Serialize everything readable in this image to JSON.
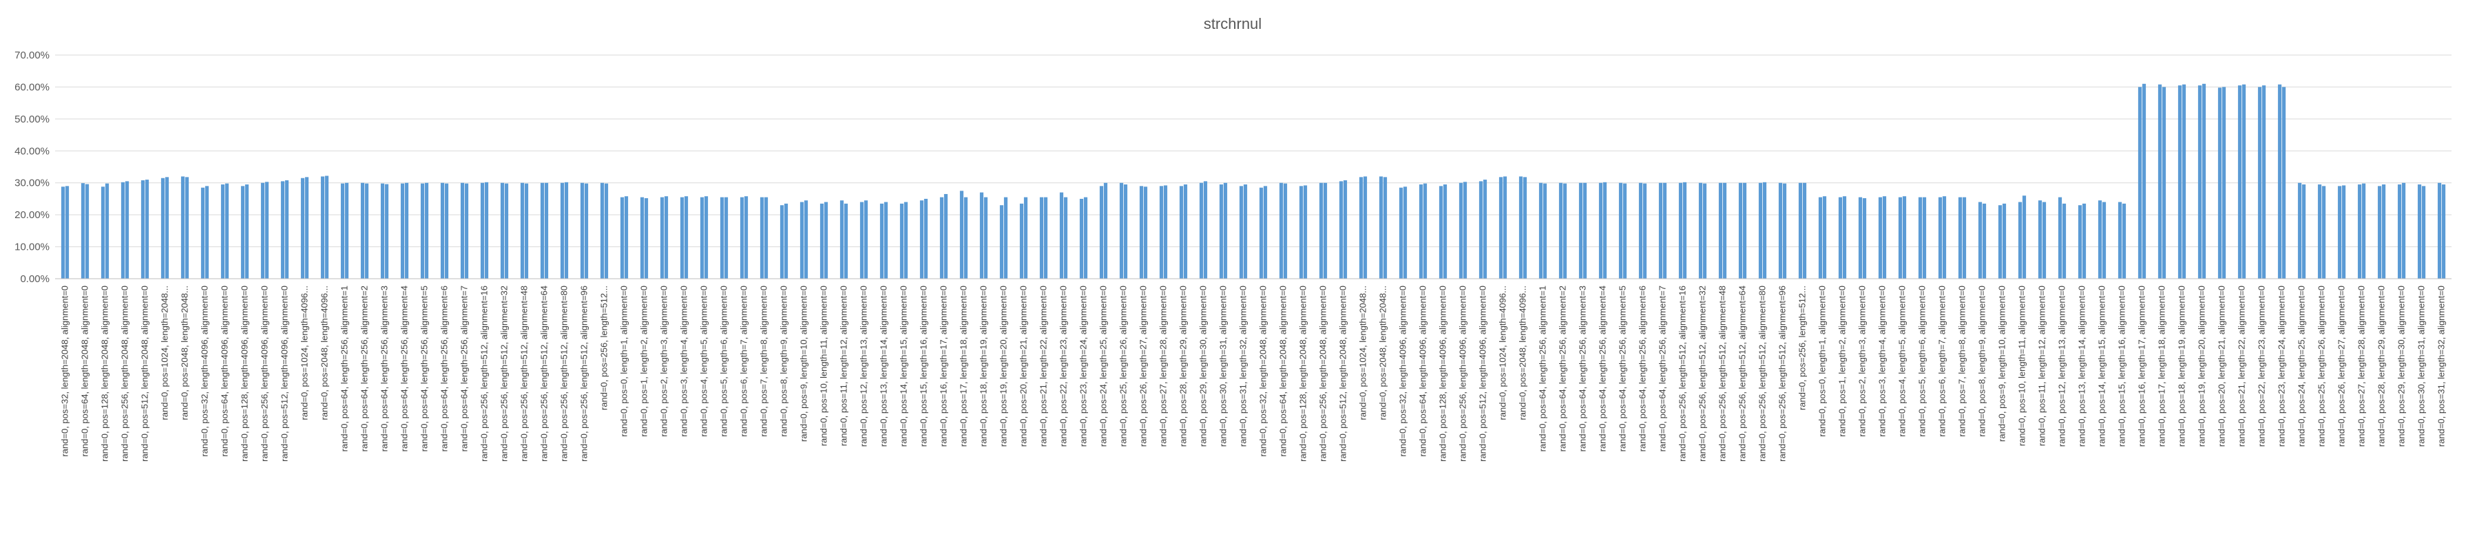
{
  "chart_data": {
    "type": "bar",
    "title": "strchrnul",
    "xlabel": "",
    "ylabel": "",
    "ylim": [
      0,
      0.7
    ],
    "yticks": [
      0,
      0.1,
      0.2,
      0.3,
      0.4,
      0.5,
      0.6,
      0.7
    ],
    "ytick_labels": [
      "0.00%",
      "10.00%",
      "20.00%",
      "30.00%",
      "40.00%",
      "50.00%",
      "60.00%",
      "70.00%"
    ],
    "grid": true,
    "legend": "none",
    "bar_color": "#5b9bd5",
    "categories": [
      "rand=0, pos=32, length=2048, alignment=0",
      "rand=0, pos=64, length=2048, alignment=0",
      "rand=0, pos=128, length=2048, alignment=0",
      "rand=0, pos=256, length=2048, alignment=0",
      "rand=0, pos=512, length=2048, alignment=0",
      "rand=0, pos=1024, length=2048...",
      "rand=0, pos=2048, length=2048...",
      "rand=0, pos=32, length=4096, alignment=0",
      "rand=0, pos=64, length=4096, alignment=0",
      "rand=0, pos=128, length=4096, alignment=0",
      "rand=0, pos=256, length=4096, alignment=0",
      "rand=0, pos=512, length=4096, alignment=0",
      "rand=0, pos=1024, length=4096...",
      "rand=0, pos=2048, length=4096...",
      "rand=0, pos=64, length=256, alignment=1",
      "rand=0, pos=64, length=256, alignment=2",
      "rand=0, pos=64, length=256, alignment=3",
      "rand=0, pos=64, length=256, alignment=4",
      "rand=0, pos=64, length=256, alignment=5",
      "rand=0, pos=64, length=256, alignment=6",
      "rand=0, pos=64, length=256, alignment=7",
      "rand=0, pos=256, length=512, alignment=16",
      "rand=0, pos=256, length=512, alignment=32",
      "rand=0, pos=256, length=512, alignment=48",
      "rand=0, pos=256, length=512, alignment=64",
      "rand=0, pos=256, length=512, alignment=80",
      "rand=0, pos=256, length=512, alignment=96",
      "rand=0, pos=256, length=512...",
      "rand=0, pos=0, length=1, alignment=0",
      "rand=0, pos=1, length=2, alignment=0",
      "rand=0, pos=2, length=3, alignment=0",
      "rand=0, pos=3, length=4, alignment=0",
      "rand=0, pos=4, length=5, alignment=0",
      "rand=0, pos=5, length=6, alignment=0",
      "rand=0, pos=6, length=7, alignment=0",
      "rand=0, pos=7, length=8, alignment=0",
      "rand=0, pos=8, length=9, alignment=0",
      "rand=0, pos=9, length=10, alignment=0",
      "rand=0, pos=10, length=11, alignment=0",
      "rand=0, pos=11, length=12, alignment=0",
      "rand=0, pos=12, length=13, alignment=0",
      "rand=0, pos=13, length=14, alignment=0",
      "rand=0, pos=14, length=15, alignment=0",
      "rand=0, pos=15, length=16, alignment=0",
      "rand=0, pos=16, length=17, alignment=0",
      "rand=0, pos=17, length=18, alignment=0",
      "rand=0, pos=18, length=19, alignment=0",
      "rand=0, pos=19, length=20, alignment=0",
      "rand=0, pos=20, length=21, alignment=0",
      "rand=0, pos=21, length=22, alignment=0",
      "rand=0, pos=22, length=23, alignment=0",
      "rand=0, pos=23, length=24, alignment=0",
      "rand=0, pos=24, length=25, alignment=0",
      "rand=0, pos=25, length=26, alignment=0",
      "rand=0, pos=26, length=27, alignment=0",
      "rand=0, pos=27, length=28, alignment=0",
      "rand=0, pos=28, length=29, alignment=0",
      "rand=0, pos=29, length=30, alignment=0",
      "rand=0, pos=30, length=31, alignment=0",
      "rand=0, pos=31, length=32, alignment=0",
      "rand=0, pos=32, length=2048, alignment=0",
      "rand=0, pos=64, length=2048, alignment=0",
      "rand=0, pos=128, length=2048, alignment=0",
      "rand=0, pos=256, length=2048, alignment=0",
      "rand=0, pos=512, length=2048, alignment=0",
      "rand=0, pos=1024, length=2048...",
      "rand=0, pos=2048, length=2048...",
      "rand=0, pos=32, length=4096, alignment=0",
      "rand=0, pos=64, length=4096, alignment=0",
      "rand=0, pos=128, length=4096, alignment=0",
      "rand=0, pos=256, length=4096, alignment=0",
      "rand=0, pos=512, length=4096, alignment=0",
      "rand=0, pos=1024, length=4096...",
      "rand=0, pos=2048, length=4096...",
      "rand=0, pos=64, length=256, alignment=1",
      "rand=0, pos=64, length=256, alignment=2",
      "rand=0, pos=64, length=256, alignment=3",
      "rand=0, pos=64, length=256, alignment=4",
      "rand=0, pos=64, length=256, alignment=5",
      "rand=0, pos=64, length=256, alignment=6",
      "rand=0, pos=64, length=256, alignment=7",
      "rand=0, pos=256, length=512, alignment=16",
      "rand=0, pos=256, length=512, alignment=32",
      "rand=0, pos=256, length=512, alignment=48",
      "rand=0, pos=256, length=512, alignment=64",
      "rand=0, pos=256, length=512, alignment=80",
      "rand=0, pos=256, length=512, alignment=96",
      "rand=0, pos=256, length=512...",
      "rand=0, pos=0, length=1, alignment=0",
      "rand=0, pos=1, length=2, alignment=0",
      "rand=0, pos=2, length=3, alignment=0",
      "rand=0, pos=3, length=4, alignment=0",
      "rand=0, pos=4, length=5, alignment=0",
      "rand=0, pos=5, length=6, alignment=0",
      "rand=0, pos=6, length=7, alignment=0",
      "rand=0, pos=7, length=8, alignment=0",
      "rand=0, pos=8, length=9, alignment=0",
      "rand=0, pos=9, length=10, alignment=0",
      "rand=0, pos=10, length=11, alignment=0",
      "rand=0, pos=11, length=12, alignment=0",
      "rand=0, pos=12, length=13, alignment=0",
      "rand=0, pos=13, length=14, alignment=0",
      "rand=0, pos=14, length=15, alignment=0",
      "rand=0, pos=15, length=16, alignment=0",
      "rand=0, pos=16, length=17, alignment=0",
      "rand=0, pos=17, length=18, alignment=0",
      "rand=0, pos=18, length=19, alignment=0",
      "rand=0, pos=19, length=20, alignment=0",
      "rand=0, pos=20, length=21, alignment=0",
      "rand=0, pos=21, length=22, alignment=0",
      "rand=0, pos=22, length=23, alignment=0",
      "rand=0, pos=23, length=24, alignment=0",
      "rand=0, pos=24, length=25, alignment=0",
      "rand=0, pos=25, length=26, alignment=0",
      "rand=0, pos=26, length=27, alignment=0",
      "rand=0, pos=27, length=28, alignment=0",
      "rand=0, pos=28, length=29, alignment=0",
      "rand=0, pos=29, length=30, alignment=0",
      "rand=0, pos=30, length=31, alignment=0",
      "rand=0, pos=31, length=32, alignment=0"
    ],
    "values": [
      [
        0.288,
        0.29
      ],
      [
        0.299,
        0.296
      ],
      [
        0.288,
        0.298
      ],
      [
        0.302,
        0.305
      ],
      [
        0.308,
        0.31
      ],
      [
        0.315,
        0.318
      ],
      [
        0.32,
        0.318
      ],
      [
        0.285,
        0.29
      ],
      [
        0.295,
        0.298
      ],
      [
        0.29,
        0.295
      ],
      [
        0.3,
        0.303
      ],
      [
        0.305,
        0.308
      ],
      [
        0.315,
        0.318
      ],
      [
        0.32,
        0.322
      ],
      [
        0.298,
        0.3
      ],
      [
        0.3,
        0.298
      ],
      [
        0.298,
        0.296
      ],
      [
        0.298,
        0.3
      ],
      [
        0.298,
        0.3
      ],
      [
        0.3,
        0.298
      ],
      [
        0.3,
        0.298
      ],
      [
        0.3,
        0.302
      ],
      [
        0.3,
        0.298
      ],
      [
        0.3,
        0.298
      ],
      [
        0.3,
        0.3
      ],
      [
        0.3,
        0.302
      ],
      [
        0.3,
        0.298
      ],
      [
        0.3,
        0.298
      ],
      [
        0.255,
        0.258
      ],
      [
        0.255,
        0.252
      ],
      [
        0.255,
        0.258
      ],
      [
        0.255,
        0.258
      ],
      [
        0.255,
        0.258
      ],
      [
        0.255,
        0.255
      ],
      [
        0.255,
        0.258
      ],
      [
        0.255,
        0.255
      ],
      [
        0.23,
        0.235
      ],
      [
        0.24,
        0.245
      ],
      [
        0.235,
        0.24
      ],
      [
        0.245,
        0.235
      ],
      [
        0.24,
        0.245
      ],
      [
        0.235,
        0.24
      ],
      [
        0.235,
        0.24
      ],
      [
        0.245,
        0.25
      ],
      [
        0.255,
        0.265
      ],
      [
        0.275,
        0.255
      ],
      [
        0.27,
        0.255
      ],
      [
        0.23,
        0.255
      ],
      [
        0.235,
        0.255
      ],
      [
        0.255,
        0.255
      ],
      [
        0.27,
        0.255
      ],
      [
        0.25,
        0.255
      ],
      [
        0.29,
        0.3
      ],
      [
        0.3,
        0.295
      ],
      [
        0.29,
        0.288
      ],
      [
        0.29,
        0.292
      ],
      [
        0.29,
        0.295
      ],
      [
        0.3,
        0.305
      ],
      [
        0.295,
        0.3
      ],
      [
        0.29,
        0.295
      ],
      [
        0.285,
        0.29
      ],
      [
        0.3,
        0.298
      ],
      [
        0.29,
        0.292
      ],
      [
        0.3,
        0.3
      ],
      [
        0.305,
        0.308
      ],
      [
        0.318,
        0.32
      ],
      [
        0.32,
        0.318
      ],
      [
        0.285,
        0.288
      ],
      [
        0.295,
        0.298
      ],
      [
        0.29,
        0.295
      ],
      [
        0.3,
        0.303
      ],
      [
        0.305,
        0.31
      ],
      [
        0.318,
        0.32
      ],
      [
        0.32,
        0.318
      ],
      [
        0.3,
        0.298
      ],
      [
        0.3,
        0.298
      ],
      [
        0.3,
        0.3
      ],
      [
        0.3,
        0.302
      ],
      [
        0.3,
        0.298
      ],
      [
        0.3,
        0.298
      ],
      [
        0.3,
        0.3
      ],
      [
        0.3,
        0.302
      ],
      [
        0.3,
        0.298
      ],
      [
        0.3,
        0.3
      ],
      [
        0.3,
        0.3
      ],
      [
        0.3,
        0.302
      ],
      [
        0.3,
        0.298
      ],
      [
        0.3,
        0.3
      ],
      [
        0.255,
        0.258
      ],
      [
        0.255,
        0.258
      ],
      [
        0.255,
        0.252
      ],
      [
        0.255,
        0.258
      ],
      [
        0.255,
        0.258
      ],
      [
        0.255,
        0.255
      ],
      [
        0.255,
        0.258
      ],
      [
        0.255,
        0.255
      ],
      [
        0.24,
        0.235
      ],
      [
        0.23,
        0.235
      ],
      [
        0.24,
        0.26
      ],
      [
        0.245,
        0.24
      ],
      [
        0.255,
        0.235
      ],
      [
        0.23,
        0.235
      ],
      [
        0.245,
        0.24
      ],
      [
        0.24,
        0.235
      ],
      [
        0.6,
        0.61
      ],
      [
        0.608,
        0.6
      ],
      [
        0.605,
        0.608
      ],
      [
        0.605,
        0.61
      ],
      [
        0.598,
        0.6
      ],
      [
        0.605,
        0.608
      ],
      [
        0.6,
        0.605
      ],
      [
        0.608,
        0.6
      ],
      [
        0.3,
        0.295
      ],
      [
        0.295,
        0.29
      ],
      [
        0.29,
        0.292
      ],
      [
        0.295,
        0.298
      ],
      [
        0.29,
        0.295
      ],
      [
        0.295,
        0.3
      ],
      [
        0.295,
        0.29
      ],
      [
        0.3,
        0.295
      ]
    ]
  }
}
